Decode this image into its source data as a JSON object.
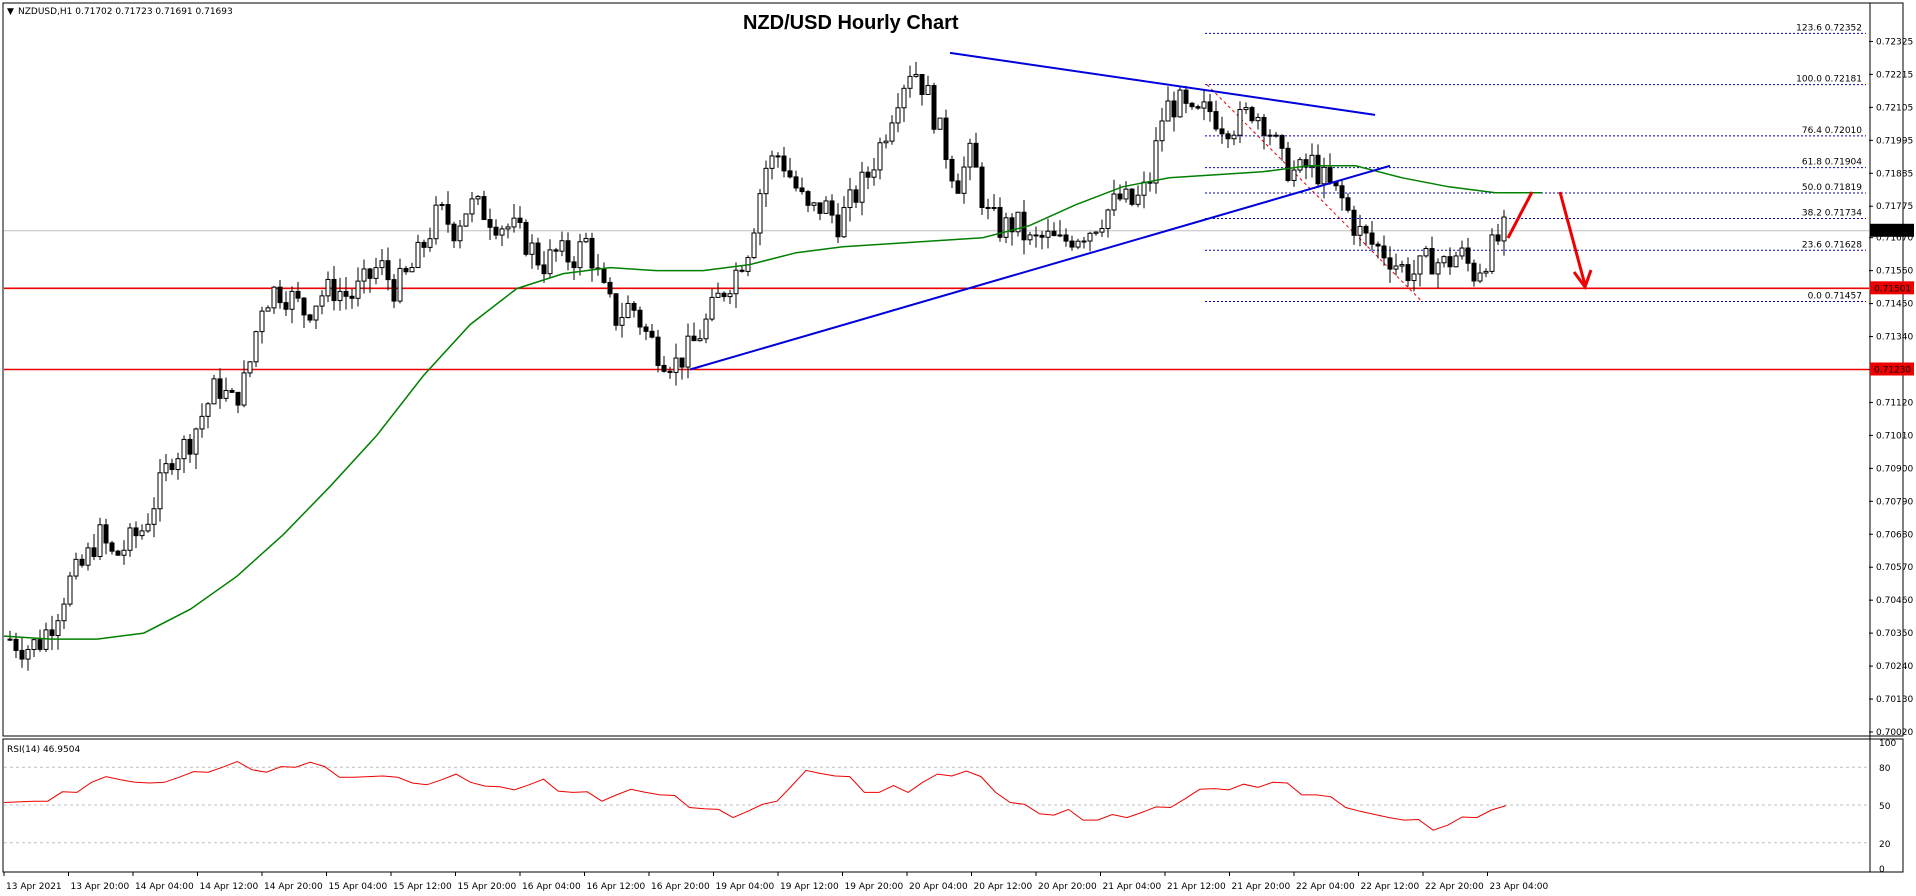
{
  "header": {
    "symbol_info": "NZDUSD,H1  0.71702 0.71723 0.71691 0.71693",
    "title": "NZD/USD Hourly Chart"
  },
  "chart_data": {
    "type": "candlestick",
    "price_axis": {
      "ylim": [
        0.7002,
        0.7244
      ],
      "ticks": [
        "0.72325",
        "0.72215",
        "0.72105",
        "0.71995",
        "0.71885",
        "0.71775",
        "0.71670",
        "0.71560",
        "0.71450",
        "0.71340",
        "0.71230",
        "0.71120",
        "0.71010",
        "0.70900",
        "0.70790",
        "0.70680",
        "0.70570",
        "0.70460",
        "0.70350",
        "0.70240",
        "0.70130",
        "0.70020"
      ],
      "current_price_label": "0.71693"
    },
    "time_axis": {
      "ticks": [
        "13 Apr 2021",
        "13 Apr 20:00",
        "14 Apr 04:00",
        "14 Apr 12:00",
        "14 Apr 20:00",
        "15 Apr 04:00",
        "15 Apr 12:00",
        "15 Apr 20:00",
        "16 Apr 04:00",
        "16 Apr 12:00",
        "16 Apr 20:00",
        "19 Apr 04:00",
        "19 Apr 12:00",
        "19 Apr 20:00",
        "20 Apr 04:00",
        "20 Apr 12:00",
        "20 Apr 20:00",
        "21 Apr 04:00",
        "21 Apr 12:00",
        "21 Apr 20:00",
        "22 Apr 04:00",
        "22 Apr 12:00",
        "22 Apr 20:00",
        "23 Apr 04:00"
      ]
    },
    "close_path": [
      0.7033,
      0.703,
      0.7032,
      0.704,
      0.7052,
      0.7058,
      0.7068,
      0.706,
      0.7065,
      0.707,
      0.7082,
      0.7095,
      0.7098,
      0.7108,
      0.7118,
      0.7112,
      0.712,
      0.7145,
      0.715,
      0.7147,
      0.7142,
      0.7148,
      0.715,
      0.7147,
      0.7152,
      0.7158,
      0.715,
      0.7155,
      0.7165,
      0.7176,
      0.717,
      0.7178,
      0.7176,
      0.7172,
      0.717,
      0.7165,
      0.7158,
      0.7162,
      0.716,
      0.7166,
      0.715,
      0.714,
      0.7145,
      0.7135,
      0.7128,
      0.7125,
      0.713,
      0.7138,
      0.7148,
      0.7155,
      0.7165,
      0.719,
      0.7195,
      0.7185,
      0.7175,
      0.7178,
      0.7172,
      0.718,
      0.7188,
      0.72,
      0.7215,
      0.7225,
      0.7215,
      0.72,
      0.7185,
      0.7195,
      0.7175,
      0.717,
      0.7172,
      0.7165,
      0.7167,
      0.7165,
      0.7168,
      0.717,
      0.7175,
      0.718,
      0.7178,
      0.7185,
      0.721,
      0.7212,
      0.7206,
      0.721,
      0.7205,
      0.7205,
      0.721,
      0.7205,
      0.7192,
      0.7188,
      0.7192,
      0.7185,
      0.718,
      0.717,
      0.7165,
      0.7162,
      0.7157,
      0.7155,
      0.716,
      0.7158,
      0.7162,
      0.7155,
      0.7162,
      0.7169
    ],
    "bar_count": 250,
    "moving_average": {
      "color": "#008000",
      "values": [
        0.7034,
        0.7033,
        0.7033,
        0.7035,
        0.7043,
        0.7054,
        0.7068,
        0.7084,
        0.7101,
        0.7121,
        0.7138,
        0.715,
        0.7155,
        0.7157,
        0.7156,
        0.7156,
        0.7158,
        0.7162,
        0.7164,
        0.7165,
        0.7166,
        0.7167,
        0.7171,
        0.7178,
        0.7184,
        0.7187,
        0.7188,
        0.7189,
        0.7191,
        0.7191,
        0.7187,
        0.7184,
        0.7182,
        0.7182
      ]
    },
    "horizontal_levels": [
      {
        "value": 0.71501,
        "label": "0.71501",
        "color": "#ee0000"
      },
      {
        "value": 0.7123,
        "label": "0.71230",
        "color": "#ee0000"
      }
    ],
    "trendlines": [
      {
        "name": "descending-resistance",
        "color": "#0000dd",
        "from": {
          "time": "20 Apr 06:00",
          "price": 0.72287
        },
        "to": {
          "time": "22 Apr 09:00",
          "price": 0.7208
        }
      },
      {
        "name": "ascending-support",
        "color": "#0000dd",
        "from": {
          "time": "16 Apr 22:00",
          "price": 0.7123
        },
        "to": {
          "time": "22 Apr 12:00",
          "price": 0.7191
        }
      }
    ],
    "fibonacci_levels": [
      {
        "label": "123.6",
        "value": "0.72352"
      },
      {
        "label": "100.0",
        "value": "0.72181"
      },
      {
        "label": "76.4",
        "value": "0.72010"
      },
      {
        "label": "61.8",
        "value": "0.71904"
      },
      {
        "label": "50.0",
        "value": "0.71819"
      },
      {
        "label": "38.2",
        "value": "0.71734"
      },
      {
        "label": "23.6",
        "value": "0.71628"
      },
      {
        "label": "0.0",
        "value": "0.71457"
      }
    ],
    "rsi": {
      "label": "RSI(14) 46.9504",
      "ylim": [
        0,
        100
      ],
      "ticks": [
        "100",
        "80",
        "50",
        "20",
        "0"
      ],
      "levels": [
        80,
        50,
        20
      ],
      "color": "#ee0000",
      "path": [
        52,
        50,
        55,
        53,
        58,
        62,
        68,
        70,
        72,
        68,
        65,
        70,
        72,
        74,
        78,
        80,
        82,
        80,
        76,
        78,
        82,
        84,
        78,
        74,
        72,
        70,
        75,
        72,
        65,
        68,
        70,
        72,
        70,
        65,
        62,
        64,
        66,
        68,
        63,
        60,
        58,
        55,
        58,
        60,
        62,
        58,
        55,
        50,
        47,
        44,
        42,
        45,
        48,
        55,
        65,
        75,
        77,
        73,
        70,
        62,
        60,
        63,
        62,
        68,
        72,
        75,
        77,
        70,
        62,
        52,
        48,
        45,
        42,
        44,
        40,
        38,
        40,
        42,
        44,
        46,
        50,
        55,
        60,
        65,
        62,
        64,
        66,
        68,
        65,
        60,
        58,
        54,
        50,
        45,
        40,
        42,
        38,
        36,
        32,
        34,
        38,
        42,
        46,
        47
      ]
    },
    "annotations": {
      "arrow_color": "#ee0000"
    }
  }
}
